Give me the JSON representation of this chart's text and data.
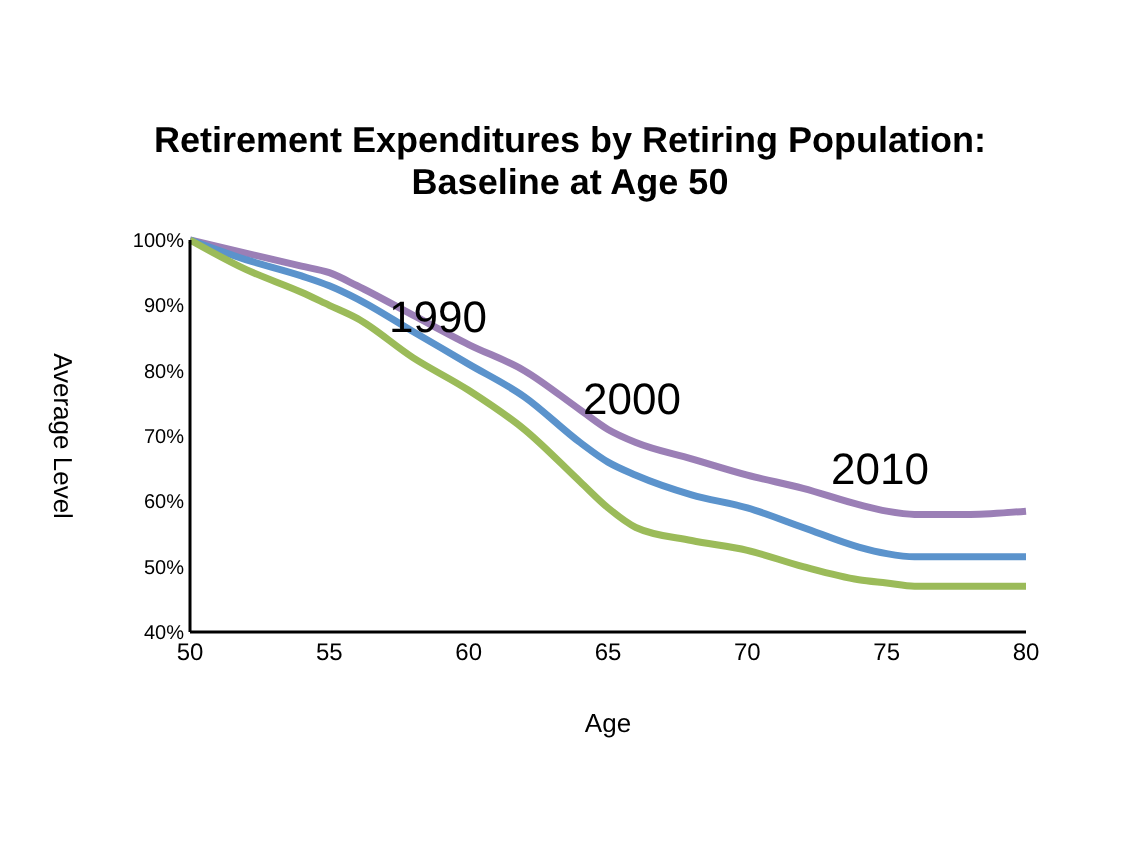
{
  "chart_data": {
    "type": "line",
    "title": "Retirement Expenditures by Retiring Population:\nBaseline at Age 50",
    "xlabel": "Age",
    "ylabel": "Average Level",
    "xlim": [
      50,
      80
    ],
    "xticks": [
      50,
      55,
      60,
      65,
      70,
      75,
      80
    ],
    "ylim": [
      40,
      100
    ],
    "yticks": [
      {
        "value": 40,
        "label": "40%"
      },
      {
        "value": 50,
        "label": "50%"
      },
      {
        "value": 60,
        "label": "60%"
      },
      {
        "value": 70,
        "label": "70%"
      },
      {
        "value": 80,
        "label": "80%"
      },
      {
        "value": 90,
        "label": "90%"
      },
      {
        "value": 100,
        "label": "100%"
      }
    ],
    "x": [
      50,
      52,
      54,
      55,
      56,
      58,
      60,
      62,
      64,
      65,
      66,
      68,
      70,
      72,
      74,
      75,
      76,
      78,
      80
    ],
    "series": [
      {
        "color": "#9b7fb6",
        "values": [
          100,
          98,
          96,
          95,
          93,
          88.5,
          84,
          80,
          74,
          71,
          69,
          66.5,
          64,
          62,
          59.5,
          58.5,
          58,
          58,
          58.5
        ]
      },
      {
        "color": "#5b93cc",
        "values": [
          100,
          97,
          94.5,
          93,
          91,
          86,
          81,
          76,
          69,
          66,
          64,
          61,
          59,
          56,
          53,
          52,
          51.5,
          51.5,
          51.5
        ]
      },
      {
        "color": "#9bbb59",
        "values": [
          100,
          95.5,
          92,
          90,
          88,
          82,
          77,
          71,
          63,
          59,
          56,
          54,
          52.5,
          50,
          48,
          47.5,
          47,
          47,
          47
        ]
      }
    ],
    "annotations": [
      "1990",
      "2000",
      "2010"
    ],
    "grid": false,
    "marker": "none",
    "line_style": "solid"
  }
}
